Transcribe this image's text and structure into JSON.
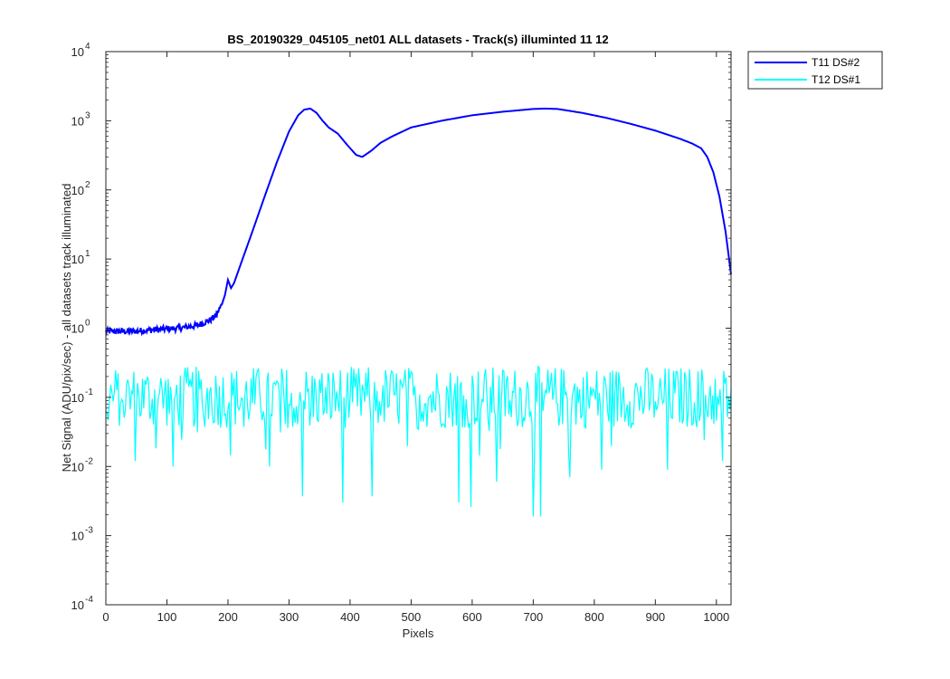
{
  "chart_data": {
    "type": "line",
    "title": "BS_20190329_045105_net01 ALL datasets - Track(s) illuminted 11  12",
    "xlabel": "Pixels",
    "ylabel": "Net Signal (ADU/pix/sec) - all datasets track illuminated",
    "xlim": [
      0,
      1024
    ],
    "ylim": [
      0.0001,
      10000
    ],
    "yscale": "log",
    "grid": false,
    "legend_position": "outside-top-right",
    "x_ticks": [
      0,
      100,
      200,
      300,
      400,
      500,
      600,
      700,
      800,
      900,
      1000
    ],
    "y_tick_exponents": [
      -4,
      -3,
      -2,
      -1,
      0,
      1,
      2,
      3,
      4
    ],
    "y_tick_base": "10",
    "series": [
      {
        "name": "T11 DS#2",
        "color": "#0000ff",
        "x": [
          0,
          40,
          80,
          120,
          150,
          170,
          180,
          190,
          195,
          200,
          205,
          210,
          220,
          240,
          260,
          280,
          300,
          315,
          325,
          335,
          345,
          355,
          365,
          380,
          395,
          410,
          420,
          435,
          450,
          470,
          500,
          550,
          600,
          650,
          700,
          720,
          740,
          780,
          820,
          860,
          900,
          940,
          960,
          975,
          985,
          995,
          1005,
          1015,
          1024
        ],
        "y": [
          0.9,
          0.9,
          0.95,
          1.0,
          1.1,
          1.3,
          1.5,
          2.2,
          3.0,
          5.0,
          3.8,
          4.5,
          8.0,
          25,
          80,
          250,
          700,
          1200,
          1450,
          1500,
          1300,
          1000,
          800,
          650,
          450,
          320,
          300,
          370,
          480,
          600,
          800,
          1000,
          1200,
          1350,
          1480,
          1500,
          1480,
          1300,
          1100,
          900,
          720,
          550,
          470,
          400,
          300,
          180,
          80,
          25,
          6
        ]
      },
      {
        "name": "T12 DS#1",
        "color": "#00ffff",
        "x": [
          0,
          1024
        ],
        "y": [
          0.1,
          0.1
        ],
        "note": "noise ~0.03–0.3, occasional dips to 0.003 near 320, 385, 435, 580, 700, 780"
      }
    ]
  }
}
